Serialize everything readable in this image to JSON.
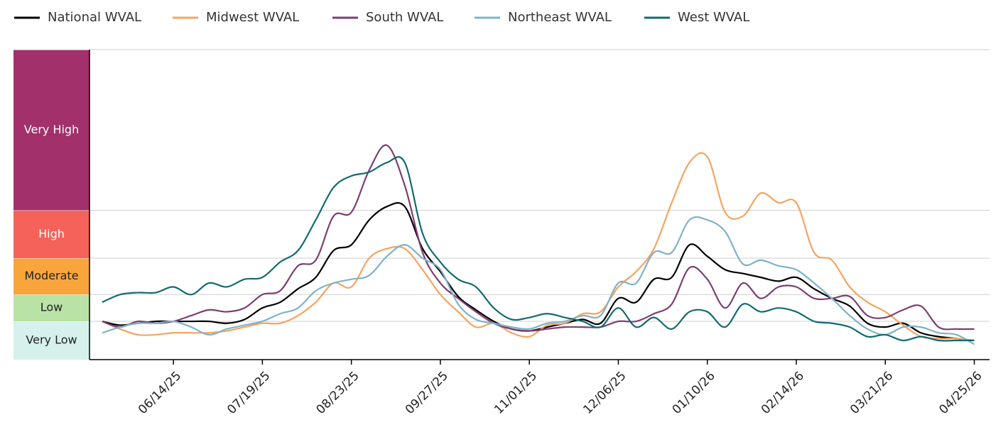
{
  "chart_data": {
    "type": "line",
    "x": [
      "05/17/25",
      "05/24/25",
      "05/31/25",
      "06/07/25",
      "06/14/25",
      "06/21/25",
      "06/28/25",
      "07/05/25",
      "07/12/25",
      "07/19/25",
      "07/26/25",
      "08/02/25",
      "08/09/25",
      "08/16/25",
      "08/23/25",
      "08/30/25",
      "09/06/25",
      "09/13/25",
      "09/20/25",
      "09/27/25",
      "10/04/25",
      "10/11/25",
      "10/18/25",
      "10/25/25",
      "11/01/25",
      "11/08/25",
      "11/15/25",
      "11/22/25",
      "11/29/25",
      "12/06/25",
      "12/13/25",
      "12/20/25",
      "12/27/25",
      "01/03/26",
      "01/10/26",
      "01/17/26",
      "01/24/26",
      "01/31/26",
      "02/07/26",
      "02/14/26",
      "02/21/26",
      "02/28/26",
      "03/07/26",
      "03/14/26",
      "03/21/26",
      "03/28/26",
      "04/04/26",
      "04/11/26",
      "04/18/26",
      "04/25/26"
    ],
    "series": [
      {
        "name": "National WVAL",
        "color": "#000000",
        "values": [
          2.0,
          1.8,
          1.9,
          2.0,
          2.0,
          2.0,
          2.0,
          1.9,
          2.1,
          2.7,
          3.0,
          3.7,
          4.3,
          5.7,
          6.0,
          7.3,
          8.0,
          8.0,
          5.8,
          4.6,
          3.3,
          2.6,
          2.0,
          1.6,
          1.5,
          1.7,
          1.9,
          2.1,
          1.9,
          3.2,
          3.0,
          4.2,
          4.3,
          6.0,
          5.4,
          4.7,
          4.5,
          4.3,
          4.1,
          4.3,
          3.7,
          3.2,
          2.8,
          1.9,
          1.7,
          1.9,
          1.4,
          1.2,
          1.1,
          1.0
        ]
      },
      {
        "name": "Midwest WVAL",
        "color": "#f4a460",
        "values": [
          2.0,
          1.6,
          1.3,
          1.3,
          1.4,
          1.4,
          1.4,
          1.5,
          1.7,
          1.9,
          1.9,
          2.3,
          3.0,
          4.0,
          3.8,
          5.3,
          5.8,
          5.8,
          4.7,
          3.4,
          2.5,
          1.7,
          1.9,
          1.4,
          1.2,
          1.8,
          1.9,
          2.4,
          2.5,
          3.8,
          4.6,
          5.8,
          8.2,
          10.3,
          10.6,
          7.7,
          7.5,
          8.7,
          8.2,
          8.2,
          5.6,
          5.2,
          3.8,
          3.0,
          2.5,
          1.8,
          1.2,
          1.1,
          1.1,
          1.0
        ]
      },
      {
        "name": "South WVAL",
        "color": "#7b3f73",
        "values": [
          2.0,
          1.7,
          2.0,
          1.9,
          2.0,
          2.3,
          2.6,
          2.5,
          2.7,
          3.4,
          3.6,
          4.9,
          5.2,
          7.5,
          7.7,
          9.9,
          11.2,
          9.1,
          5.6,
          4.0,
          3.2,
          2.5,
          1.9,
          1.6,
          1.5,
          1.6,
          1.7,
          1.7,
          1.7,
          2.0,
          2.0,
          2.4,
          2.9,
          4.8,
          4.2,
          2.7,
          4.0,
          3.2,
          3.8,
          3.8,
          3.2,
          3.2,
          3.3,
          2.3,
          2.2,
          2.6,
          2.8,
          1.7,
          1.6,
          1.6
        ]
      },
      {
        "name": "Northeast WVAL",
        "color": "#7fb2c8",
        "values": [
          1.4,
          1.7,
          1.9,
          1.9,
          2.0,
          1.7,
          1.3,
          1.6,
          1.8,
          2.0,
          2.4,
          2.7,
          3.6,
          4.0,
          4.2,
          4.4,
          5.4,
          6.0,
          5.3,
          4.7,
          2.9,
          2.1,
          1.9,
          1.7,
          1.6,
          1.9,
          2.0,
          2.3,
          2.3,
          4.0,
          4.0,
          5.6,
          5.6,
          7.3,
          7.3,
          6.7,
          5.0,
          5.2,
          4.9,
          4.7,
          4.0,
          3.2,
          2.3,
          1.6,
          1.3,
          1.7,
          1.7,
          1.4,
          1.3,
          0.8
        ]
      },
      {
        "name": "West WVAL",
        "color": "#126b70",
        "values": [
          3.0,
          3.4,
          3.5,
          3.5,
          3.8,
          3.4,
          4.0,
          3.8,
          4.2,
          4.3,
          5.1,
          5.7,
          7.3,
          9.0,
          9.6,
          9.8,
          10.3,
          10.3,
          6.6,
          5.1,
          4.2,
          3.8,
          2.7,
          2.1,
          2.2,
          2.4,
          2.2,
          2.0,
          1.7,
          2.7,
          1.7,
          2.2,
          1.6,
          2.5,
          2.5,
          1.7,
          2.9,
          2.5,
          2.7,
          2.5,
          2.0,
          1.9,
          1.7,
          1.2,
          1.3,
          1.0,
          1.2,
          1.0,
          1.0,
          1.0
        ]
      }
    ],
    "levels": [
      {
        "label": "Very Low",
        "min": 0,
        "max": 2,
        "color": "#d6f1ec"
      },
      {
        "label": "Low",
        "min": 2,
        "max": 3.4,
        "color": "#b9e2a7"
      },
      {
        "label": "Moderate",
        "min": 3.4,
        "max": 5.3,
        "color": "#f8a53c"
      },
      {
        "label": "High",
        "min": 5.3,
        "max": 7.8,
        "color": "#f4625a"
      },
      {
        "label": "Very High",
        "min": 7.8,
        "max": 16.2,
        "color": "#a2306a"
      }
    ],
    "ylim": [
      0,
      16.2
    ],
    "xlim": [
      "05/12/25",
      "05/01/26"
    ],
    "xticks": [
      "06/14/25",
      "07/19/25",
      "08/23/25",
      "09/27/25",
      "11/01/25",
      "12/06/25",
      "01/10/26",
      "02/14/26",
      "03/21/26",
      "04/25/26"
    ]
  }
}
